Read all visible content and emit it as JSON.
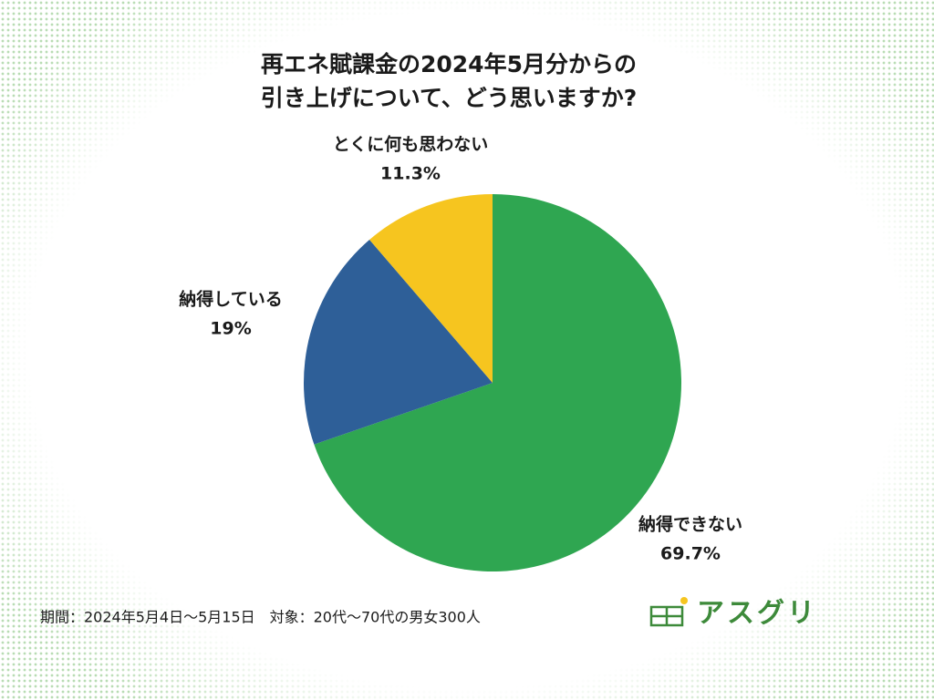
{
  "chart_data": {
    "type": "pie",
    "title": [
      "再エネ賦課金の2024年5月分からの",
      "引き上げについて、どう思いますか?"
    ],
    "categories": [
      "納得できない",
      "納得している",
      "とくに何も思わない"
    ],
    "values": [
      69.7,
      19,
      11.3
    ],
    "value_labels": [
      "69.7%",
      "19%",
      "11.3%"
    ],
    "colors": [
      "#2fa651",
      "#2e5f98",
      "#f6c51f"
    ],
    "note": "期間：2024年5月4日～5月15日　対象：20代～70代の男女300人",
    "logo": "アスグリ"
  }
}
